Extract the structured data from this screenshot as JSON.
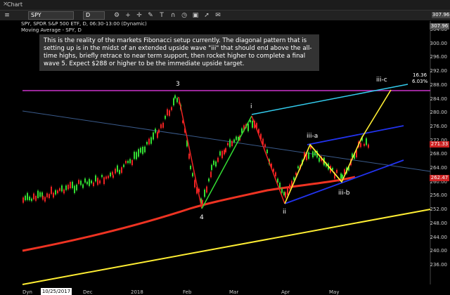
{
  "window": {
    "title": "Chart",
    "close_glyph": "×"
  },
  "toolbar": {
    "symbol": "SPY",
    "interval": "D",
    "tools": [
      "gear-icon",
      "plus-icon",
      "crosshair-icon",
      "pencil-icon",
      "text-icon",
      "magnet-icon",
      "clock-icon",
      "camera-icon",
      "arrow-icon",
      "twitter-icon"
    ],
    "price_badge": "307.96"
  },
  "chart_info": {
    "line1": "SPY, SPDR S&P 500 ETF, D, 06:30-13:00 (Dynamic)",
    "line2": "Moving Average - SPY, D"
  },
  "annotation": "This is the reality of the markets Fibonacci setup currently.  The diagonal pattern that is setting up is in the midst of an extended upside wave \"iii\" that should end above the all-time highs, briefly retrace to near term support, then rocket higher to complete a final wave 5.  Expect $288 or higher to be the immediate upside target.",
  "wave_labels": {
    "l3": "3",
    "l4": "4",
    "li": "i",
    "lii": "ii",
    "liiia": "iii-a",
    "liiib": "iii-b",
    "liiic": "iii-c",
    "target_pts": "16.36",
    "target_pct": "6.03%"
  },
  "y_axis": [
    "304.00",
    "300.00",
    "296.00",
    "292.00",
    "288.00",
    "284.00",
    "280.00",
    "276.00",
    "272.00",
    "268.00",
    "264.00",
    "260.00",
    "256.00",
    "252.00",
    "248.00",
    "244.00",
    "240.00",
    "236.00"
  ],
  "price_tags": {
    "top": "307.96",
    "last": "271.33",
    "ma": "262.47"
  },
  "x_axis": {
    "date_box": "10/25/2017",
    "left_label": "Dyn",
    "ticks": [
      "Dec",
      "2018",
      "Feb",
      "Mar",
      "Apr",
      "May"
    ]
  },
  "colors": {
    "background": "#000000",
    "fib_line": "#cc33cc",
    "cyan": "#33ccee",
    "blue": "#2233ee",
    "yellow": "#ffee33",
    "green": "#33dd33",
    "red": "#ee2222",
    "ma": "#ee3322"
  }
}
